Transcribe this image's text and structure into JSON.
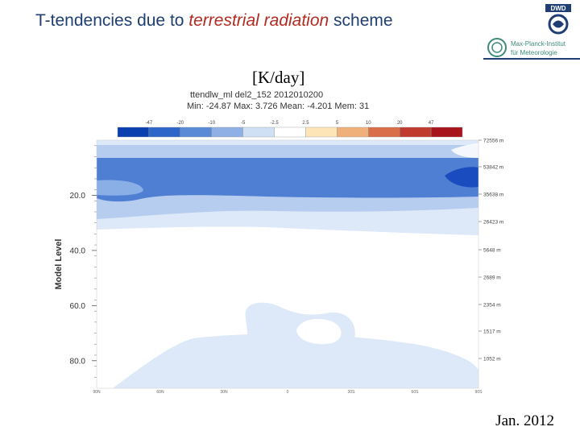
{
  "slide": {
    "title_prefix": "T-tendencies due to ",
    "title_emphasis": "terrestrial radiation",
    "title_suffix": " scheme",
    "unit": "[K/day]",
    "date": "Jan. 2012",
    "logo_right_line1": "Max-Planck-Institut",
    "logo_right_line2": "für Meteorologie",
    "logo_top_text": "DWD"
  },
  "plot_meta": {
    "field_line": "ttendlw_ml   del2_152   2012010200",
    "stats_line": "Min: -24.87   Max: 3.726   Mean: -4.201   Mem: 31"
  },
  "colors": {
    "title": "#1f3f74",
    "emphasis": "#b32a20"
  },
  "chart_data": {
    "type": "heatmap",
    "title": "ttendlw_ml   del2_152   2012010200",
    "subtitle": "Min: -24.87   Max: 3.726   Mean: -4.201   Mem: 31",
    "ylabel": "Model Level",
    "xlabel": "",
    "ylim": [
      90,
      0
    ],
    "yticks": [
      "20.0",
      "40.0",
      "60.0",
      "80.0"
    ],
    "xtick_labels": [
      "90N",
      "60N",
      "30N",
      "0",
      "30S",
      "60S",
      "90S"
    ],
    "right_axis_labels": [
      "72556 m",
      "53842 m",
      "35638 m",
      "26423 m",
      "5648 m",
      "2689 m",
      "2354 m",
      "1517 m",
      "1052 m"
    ],
    "colorbar": {
      "labels": [
        "-47",
        "-20",
        "-10",
        "-5",
        "-2.5",
        "2.5",
        "5",
        "10",
        "20",
        "47"
      ],
      "colors": [
        "#0a3fb0",
        "#2e65c8",
        "#5a8ad6",
        "#8fb0e4",
        "#cfe0f5",
        "#ffffff",
        "#fde5b8",
        "#f0b07a",
        "#d86e4a",
        "#c03a2e",
        "#a8141c"
      ]
    },
    "grid": false
  }
}
